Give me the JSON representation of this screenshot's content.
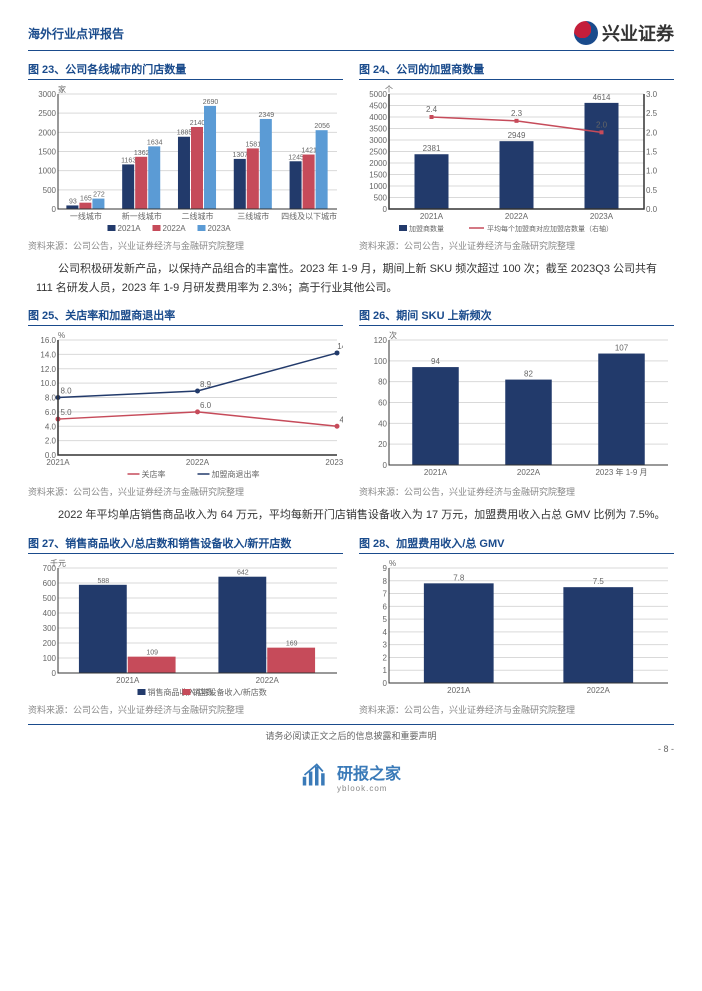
{
  "header": {
    "reportType": "海外行业点评报告",
    "company": "兴业证券"
  },
  "text1": "公司积极研发新产品，以保持产品组合的丰富性。2023 年 1-9 月，期间上新 SKU 频次超过 100 次；截至 2023Q3 公司共有 111 名研发人员，2023 年 1-9 月研发费用率为 2.3%；高于行业其他公司。",
  "text2": "2022 年平均单店销售商品收入为 64 万元，平均每新开门店销售设备收入为 17 万元，加盟费用收入占总 GMV 比例为 7.5%。",
  "source": "资料来源：公司公告，兴业证券经济与金融研究院整理",
  "chart23": {
    "title": "图 23、公司各线城市的门店数量",
    "unit": "家",
    "categories": [
      "一线城市",
      "新一线城市",
      "二线城市",
      "三线城市",
      "四线及以下城市"
    ],
    "series": [
      {
        "name": "2021A",
        "color": "#223a6b",
        "values": [
          93,
          1163,
          1885,
          1307,
          1245
        ]
      },
      {
        "name": "2022A",
        "color": "#c64b5a",
        "values": [
          165,
          1362,
          2140,
          1581,
          1421
        ]
      },
      {
        "name": "2023A",
        "color": "#5b9bd5",
        "values": [
          272,
          1634,
          2690,
          2349,
          2056
        ]
      }
    ],
    "ymax": 3000,
    "ystep": 500,
    "bg": "#ffffff",
    "grid": "#d9d9d9",
    "text": "#666666",
    "label_fontsize": 8
  },
  "chart24": {
    "title": "图 24、公司的加盟商数量",
    "unit": "个",
    "categories": [
      "2021A",
      "2022A",
      "2023A"
    ],
    "bars": {
      "name": "加盟商数量",
      "color": "#223a6b",
      "values": [
        2381,
        2949,
        4614
      ]
    },
    "line": {
      "name": "平均每个加盟商对应加盟店数量（右轴）",
      "color": "#c64b5a",
      "values": [
        2.4,
        2.3,
        2.0
      ]
    },
    "yleft": {
      "max": 5000,
      "step": 500
    },
    "yright": {
      "max": 3.0,
      "step": 0.5
    },
    "bg": "#ffffff",
    "grid": "#d9d9d9",
    "text": "#666666",
    "label_fontsize": 8
  },
  "chart25": {
    "title": "图 25、关店率和加盟商退出率",
    "unit": "%",
    "categories": [
      "2021A",
      "2022A",
      "2023A"
    ],
    "series": [
      {
        "name": "关店率",
        "color": "#c64b5a",
        "values": [
          5.0,
          6.0,
          4.0
        ]
      },
      {
        "name": "加盟商退出率",
        "color": "#223a6b",
        "values": [
          8.0,
          8.9,
          14.2
        ]
      }
    ],
    "ymax": 16,
    "ystep": 2,
    "bg": "#ffffff",
    "grid": "#d9d9d9",
    "text": "#666666",
    "label_fontsize": 8
  },
  "chart26": {
    "title": "图 26、期间 SKU 上新频次",
    "unit": "次",
    "categories": [
      "2021A",
      "2022A",
      "2023 年 1-9 月"
    ],
    "bars": {
      "color": "#223a6b",
      "values": [
        94,
        82,
        107
      ]
    },
    "ymax": 120,
    "ystep": 20,
    "bg": "#ffffff",
    "grid": "#d9d9d9",
    "text": "#666666",
    "label_fontsize": 8
  },
  "chart27": {
    "title": "图 27、销售商品收入/总店数和销售设备收入/新开店数",
    "unit": "千元",
    "categories": [
      "2021A",
      "2022A"
    ],
    "series": [
      {
        "name": "销售商品收入/店数",
        "color": "#223a6b",
        "values": [
          588,
          642
        ]
      },
      {
        "name": "销售设备收入/新店数",
        "color": "#c64b5a",
        "values": [
          109,
          169
        ]
      }
    ],
    "ymax": 700,
    "ystep": 100,
    "bg": "#ffffff",
    "grid": "#d9d9d9",
    "text": "#666666",
    "label_fontsize": 8
  },
  "chart28": {
    "title": "图 28、加盟费用收入/总 GMV",
    "unit": "%",
    "categories": [
      "2021A",
      "2022A"
    ],
    "bars": {
      "color": "#223a6b",
      "values": [
        7.8,
        7.5
      ]
    },
    "ymax": 9,
    "ystep": 1,
    "bg": "#ffffff",
    "grid": "#d9d9d9",
    "text": "#666666",
    "label_fontsize": 8
  },
  "footer": {
    "disclaimer": "请务必阅读正文之后的信息披露和重要声明",
    "page": "- 8 -"
  },
  "watermark": {
    "name": "研报之家",
    "sub": "yblook.com"
  }
}
